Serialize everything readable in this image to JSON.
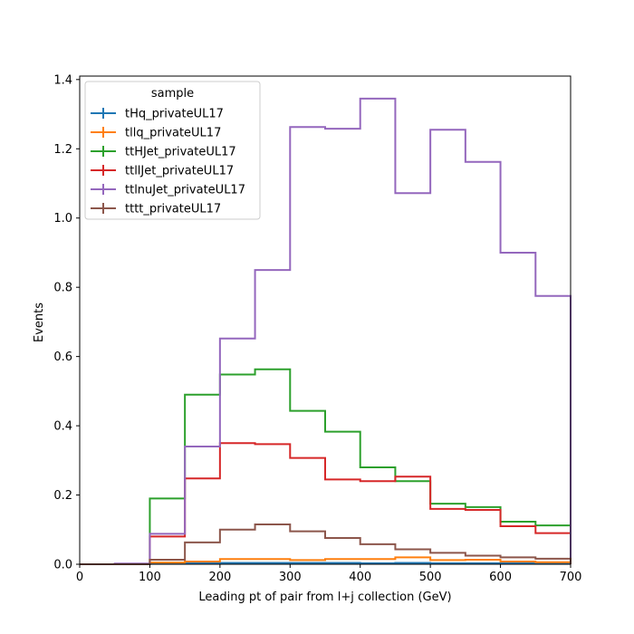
{
  "chart_data": {
    "type": "line",
    "xlabel": "Leading pt of pair from l+j collection (GeV)",
    "ylabel": "Events",
    "xlim": [
      0,
      700
    ],
    "ylim": [
      0,
      1.41
    ],
    "xticks": [
      0,
      100,
      200,
      300,
      400,
      500,
      600,
      700
    ],
    "yticks": [
      0.0,
      0.2,
      0.4,
      0.6,
      0.8,
      1.0,
      1.2,
      1.4
    ],
    "xtick_labels": [
      "0",
      "100",
      "200",
      "300",
      "400",
      "500",
      "600",
      "700"
    ],
    "ytick_labels": [
      "0.0",
      "0.2",
      "0.4",
      "0.6",
      "0.8",
      "1.0",
      "1.2",
      "1.4"
    ],
    "grid": false,
    "legend_title": "sample",
    "legend_position": "top-left",
    "bin_edges": [
      0,
      50,
      100,
      150,
      200,
      250,
      300,
      350,
      400,
      450,
      500,
      550,
      600,
      650,
      700
    ],
    "series": [
      {
        "name": "tHq_privateUL17",
        "color": "#1f77b4",
        "values": [
          0,
          0,
          0.002,
          0.003,
          0.004,
          0.004,
          0.004,
          0.004,
          0.003,
          0.004,
          0.003,
          0.003,
          0.003,
          0.002
        ]
      },
      {
        "name": "tllq_privateUL17",
        "color": "#ff7f0e",
        "values": [
          0,
          0,
          0.005,
          0.008,
          0.015,
          0.015,
          0.012,
          0.015,
          0.015,
          0.02,
          0.012,
          0.013,
          0.008,
          0.006
        ]
      },
      {
        "name": "ttHJet_privateUL17",
        "color": "#2ca02c",
        "values": [
          0,
          0.001,
          0.19,
          0.49,
          0.548,
          0.563,
          0.443,
          0.383,
          0.28,
          0.24,
          0.175,
          0.165,
          0.123,
          0.112
        ]
      },
      {
        "name": "ttllJet_privateUL17",
        "color": "#d62728",
        "values": [
          0,
          0.001,
          0.08,
          0.248,
          0.35,
          0.347,
          0.307,
          0.245,
          0.24,
          0.253,
          0.16,
          0.157,
          0.11,
          0.09
        ]
      },
      {
        "name": "ttlnuJet_privateUL17",
        "color": "#9467bd",
        "values": [
          0,
          0.002,
          0.088,
          0.34,
          0.652,
          0.85,
          1.263,
          1.258,
          1.345,
          1.072,
          1.255,
          1.162,
          0.9,
          0.775
        ]
      },
      {
        "name": "tttt_privateUL17",
        "color": "#8c564b",
        "values": [
          0,
          0,
          0.013,
          0.063,
          0.1,
          0.115,
          0.095,
          0.076,
          0.058,
          0.043,
          0.033,
          0.025,
          0.02,
          0.016
        ]
      }
    ]
  }
}
